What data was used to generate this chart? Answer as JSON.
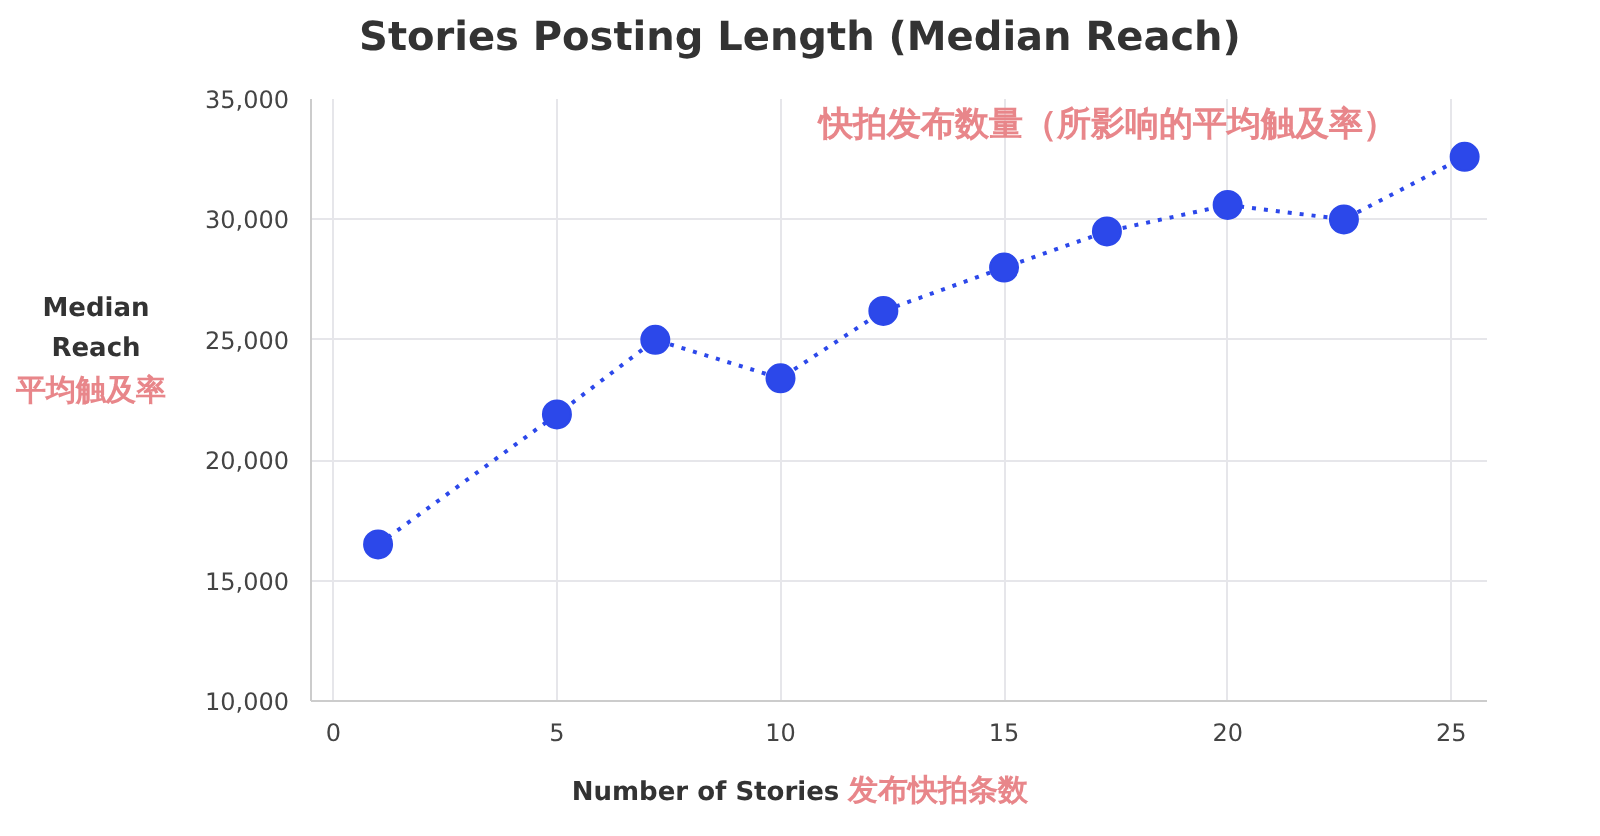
{
  "chart_data": {
    "type": "line",
    "title": "Stories Posting Length (Median Reach)",
    "subtitle": "快拍发布数量（所影响的平均触及率）",
    "xlabel": "Number of Stories",
    "ylabel": "Median Reach",
    "annotations": [
      "平均触及率",
      "发布快拍条数"
    ],
    "x": [
      1,
      5,
      7.2,
      10,
      12.3,
      15,
      17.3,
      20,
      22.6,
      25.3
    ],
    "series": [
      {
        "color": "#2c48ea",
        "values": [
          16500,
          21900,
          25000,
          23400,
          26200,
          28000,
          29500,
          30600,
          30000,
          32600
        ]
      }
    ],
    "xlim": [
      -0.5,
      25.8
    ],
    "xticks": [
      0,
      5,
      10,
      15,
      20,
      25
    ],
    "ylim": [
      10000,
      35000
    ],
    "yticks": [
      {
        "value": 10000,
        "label": "10,000"
      },
      {
        "value": 15000,
        "label": "15,000"
      },
      {
        "value": 20000,
        "label": "20,000"
      },
      {
        "value": 25000,
        "label": "25,000"
      },
      {
        "value": 30000,
        "label": "30,000"
      },
      {
        "value": 35000,
        "label": "35,000"
      }
    ],
    "grid": true,
    "marker": "circle",
    "line_style": "dotted"
  }
}
